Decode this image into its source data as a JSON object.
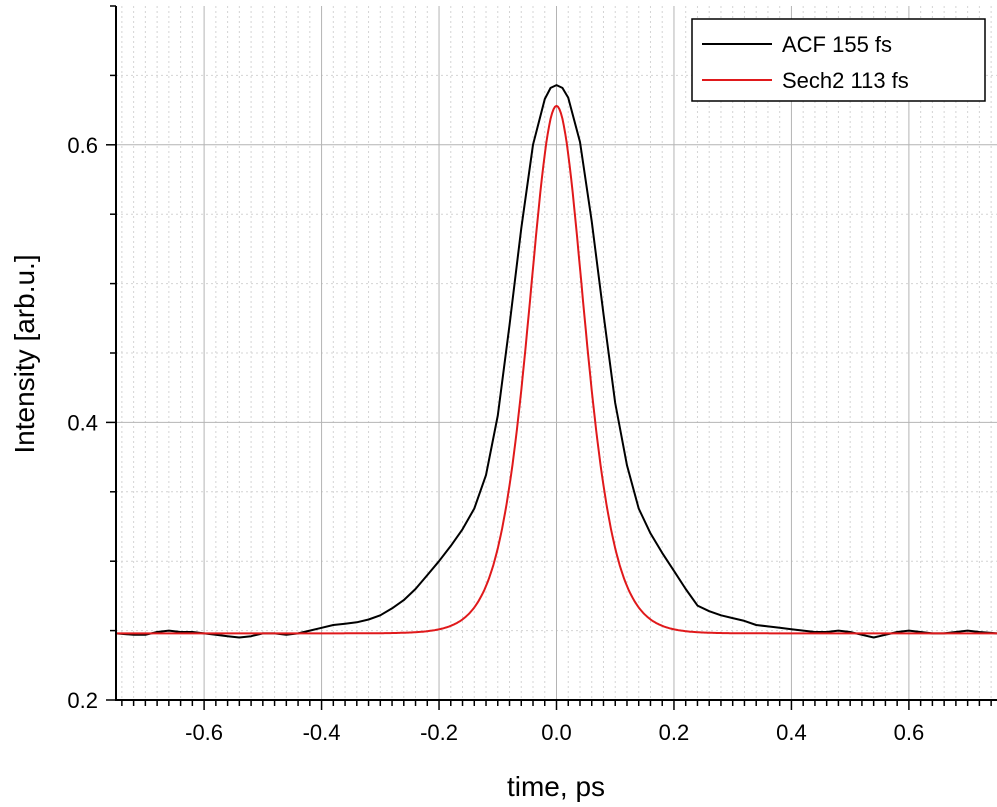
{
  "chart_data": {
    "type": "line",
    "xlabel": "time, ps",
    "ylabel": "Intensity [arb.u.]",
    "xlim": [
      -0.75,
      0.75
    ],
    "ylim": [
      0.2,
      0.7
    ],
    "x_ticks": [
      -0.6,
      -0.4,
      -0.2,
      0.0,
      0.2,
      0.4,
      0.6
    ],
    "x_tick_labels": [
      "-0.6",
      "-0.4",
      "-0.2",
      "0.0",
      "0.2",
      "0.4",
      "0.6"
    ],
    "y_ticks": [
      0.2,
      0.4,
      0.6
    ],
    "y_tick_labels": [
      "0.2",
      "0.4",
      "0.6"
    ],
    "grid": "major and minor",
    "legend_position": "top-right",
    "series": [
      {
        "name": "ACF 155 fs",
        "color": "#000000",
        "x": [
          -0.75,
          -0.72,
          -0.7,
          -0.68,
          -0.66,
          -0.64,
          -0.62,
          -0.6,
          -0.58,
          -0.56,
          -0.54,
          -0.52,
          -0.5,
          -0.48,
          -0.46,
          -0.44,
          -0.42,
          -0.4,
          -0.38,
          -0.36,
          -0.34,
          -0.32,
          -0.3,
          -0.28,
          -0.26,
          -0.24,
          -0.22,
          -0.2,
          -0.18,
          -0.16,
          -0.14,
          -0.12,
          -0.1,
          -0.08,
          -0.06,
          -0.04,
          -0.02,
          -0.01,
          0.0,
          0.01,
          0.02,
          0.04,
          0.06,
          0.08,
          0.1,
          0.12,
          0.14,
          0.16,
          0.18,
          0.2,
          0.22,
          0.24,
          0.26,
          0.28,
          0.3,
          0.32,
          0.34,
          0.36,
          0.38,
          0.4,
          0.42,
          0.44,
          0.46,
          0.48,
          0.5,
          0.52,
          0.54,
          0.56,
          0.58,
          0.6,
          0.62,
          0.64,
          0.66,
          0.68,
          0.7,
          0.72,
          0.75
        ],
        "y": [
          0.248,
          0.247,
          0.247,
          0.249,
          0.25,
          0.249,
          0.249,
          0.248,
          0.247,
          0.246,
          0.245,
          0.246,
          0.248,
          0.248,
          0.247,
          0.248,
          0.25,
          0.252,
          0.254,
          0.255,
          0.256,
          0.258,
          0.261,
          0.266,
          0.272,
          0.28,
          0.29,
          0.3,
          0.311,
          0.323,
          0.338,
          0.362,
          0.405,
          0.47,
          0.54,
          0.6,
          0.633,
          0.641,
          0.643,
          0.641,
          0.634,
          0.602,
          0.545,
          0.478,
          0.414,
          0.369,
          0.338,
          0.32,
          0.306,
          0.293,
          0.28,
          0.268,
          0.264,
          0.261,
          0.259,
          0.257,
          0.254,
          0.253,
          0.252,
          0.251,
          0.25,
          0.249,
          0.249,
          0.25,
          0.249,
          0.247,
          0.245,
          0.247,
          0.249,
          0.25,
          0.249,
          0.248,
          0.248,
          0.249,
          0.25,
          0.249,
          0.248
        ]
      },
      {
        "name": "Sech2 113 fs",
        "color": "#e0191b",
        "model": "sech2",
        "baseline": 0.248,
        "amplitude": 0.38,
        "tau": 0.064
      }
    ]
  }
}
